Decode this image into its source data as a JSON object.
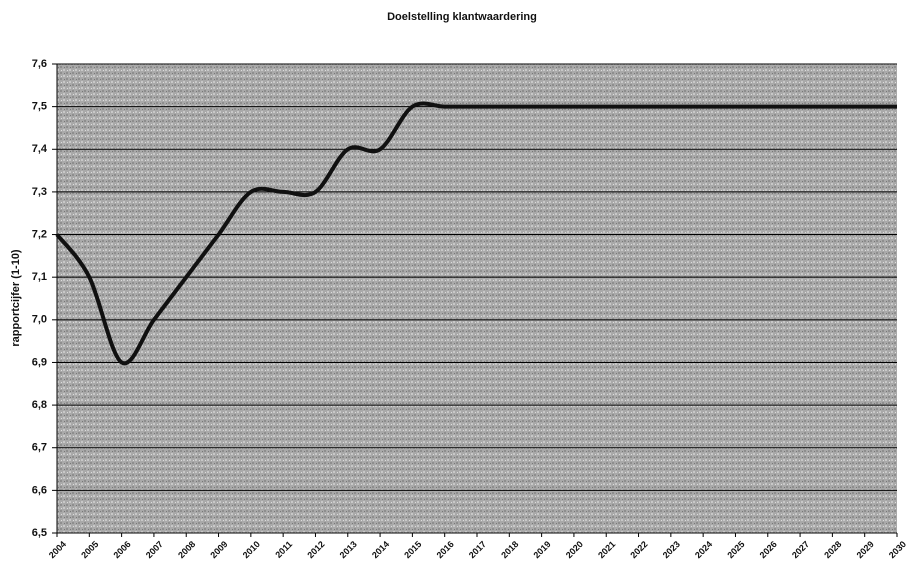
{
  "chart_data": {
    "type": "line",
    "title": "Doelstelling klantwaardering",
    "y_label": "rapportcijfer (1-10)",
    "categories": [
      "2004",
      "2005",
      "2006",
      "2007",
      "2008",
      "2009",
      "2010",
      "2011",
      "2012",
      "2013",
      "2014",
      "2015",
      "2016",
      "2017",
      "2018",
      "2019",
      "2020",
      "2021",
      "2022",
      "2023",
      "2024",
      "2025",
      "2026",
      "2027",
      "2028",
      "2029",
      "2030"
    ],
    "series": [
      {
        "name": "klantwaardering",
        "color": "#111111",
        "values": [
          7.2,
          7.1,
          6.9,
          7.0,
          7.1,
          7.2,
          7.3,
          7.3,
          7.3,
          7.4,
          7.4,
          7.5,
          7.5,
          7.5,
          7.5,
          7.5,
          7.5,
          7.5,
          7.5,
          7.5,
          7.5,
          7.5,
          7.5,
          7.5,
          7.5,
          7.5,
          7.5
        ]
      }
    ],
    "ylim": [
      6.5,
      7.6
    ],
    "yticks": [
      {
        "value": 6.5,
        "label": "6,5"
      },
      {
        "value": 6.6,
        "label": "6,6"
      },
      {
        "value": 6.7,
        "label": "6,7"
      },
      {
        "value": 6.8,
        "label": "6,8"
      },
      {
        "value": 6.9,
        "label": "6,9"
      },
      {
        "value": 7.0,
        "label": "7,0"
      },
      {
        "value": 7.1,
        "label": "7,1"
      },
      {
        "value": 7.2,
        "label": "7,2"
      },
      {
        "value": 7.3,
        "label": "7,3"
      },
      {
        "value": 7.4,
        "label": "7,4"
      },
      {
        "value": 7.5,
        "label": "7,5"
      },
      {
        "value": 7.6,
        "label": "7,6"
      }
    ],
    "grid": true
  }
}
